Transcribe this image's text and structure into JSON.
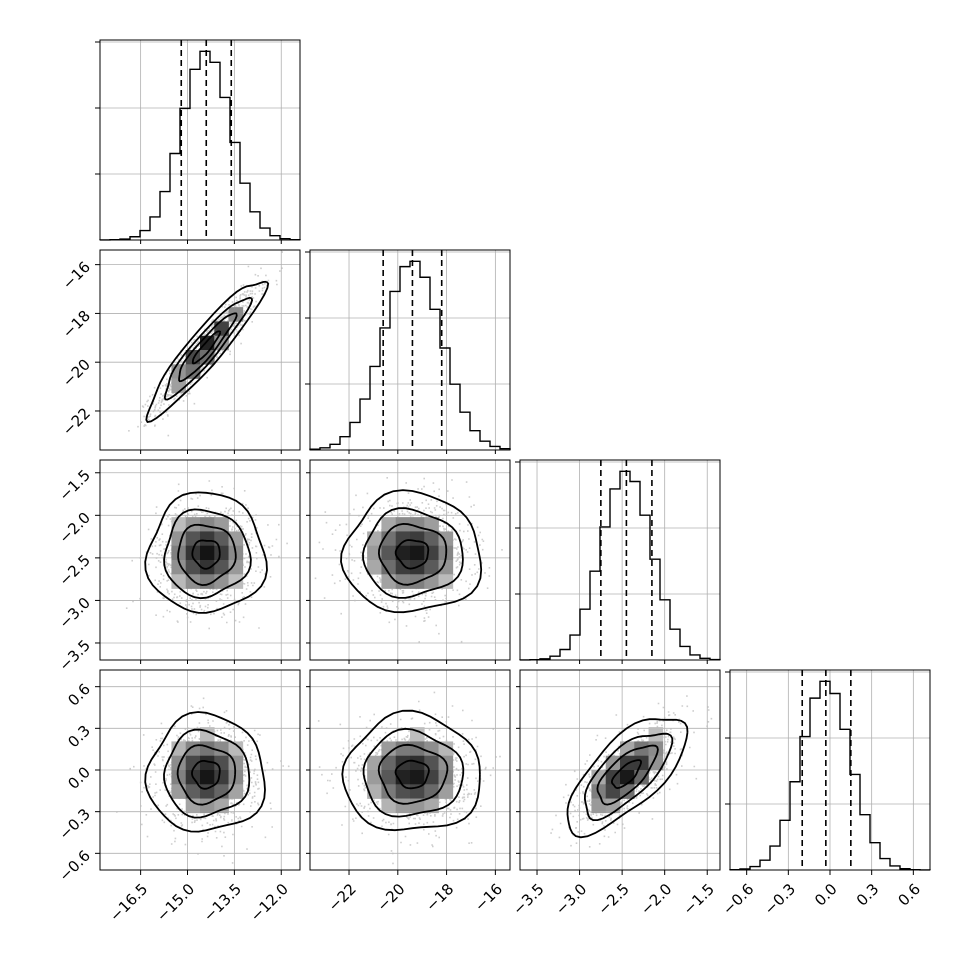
{
  "chart_data": {
    "type": "corner",
    "grid": true,
    "parameters": [
      {
        "index": 0,
        "range": [
          -17.8,
          -11.4
        ],
        "ticks": [
          -16.5,
          -15.0,
          -13.5,
          -12.0
        ],
        "tick_labels": [
          "−16.5",
          "−15.0",
          "−13.5",
          "−12.0"
        ],
        "quantiles": [
          -15.2,
          -14.4,
          -13.6
        ],
        "hist_mean": -14.4,
        "hist_sd": 0.8
      },
      {
        "index": 1,
        "range": [
          -23.6,
          -15.4
        ],
        "ticks": [
          -22,
          -20,
          -18,
          -16
        ],
        "tick_labels": [
          "−22",
          "−20",
          "−18",
          "−16"
        ],
        "quantiles": [
          -20.6,
          -19.4,
          -18.2
        ],
        "hist_mean": -19.4,
        "hist_sd": 1.2
      },
      {
        "index": 2,
        "range": [
          -3.7,
          -1.35
        ],
        "ticks": [
          -3.5,
          -3.0,
          -2.5,
          -2.0,
          -1.5
        ],
        "tick_labels": [
          "−3.5",
          "−3.0",
          "−2.5",
          "−2.0",
          "−1.5"
        ],
        "quantiles": [
          -2.75,
          -2.45,
          -2.15
        ],
        "hist_mean": -2.45,
        "hist_sd": 0.3
      },
      {
        "index": 3,
        "range": [
          -0.72,
          0.72
        ],
        "ticks": [
          -0.6,
          -0.3,
          0.0,
          0.3,
          0.6
        ],
        "tick_labels": [
          "−0.6",
          "−0.3",
          "0.0",
          "0.3",
          "0.6"
        ],
        "quantiles": [
          -0.2,
          -0.03,
          0.15
        ],
        "hist_mean": -0.03,
        "hist_sd": 0.18
      }
    ],
    "correlations": {
      "1-0": 0.93,
      "2-0": 0.0,
      "2-1": 0.0,
      "3-0": 0.0,
      "3-1": 0.0,
      "3-2": 0.7
    },
    "colors": {
      "line": "#000000",
      "scatter": "#bdbdbd",
      "grid": "#b0b0b0"
    }
  }
}
